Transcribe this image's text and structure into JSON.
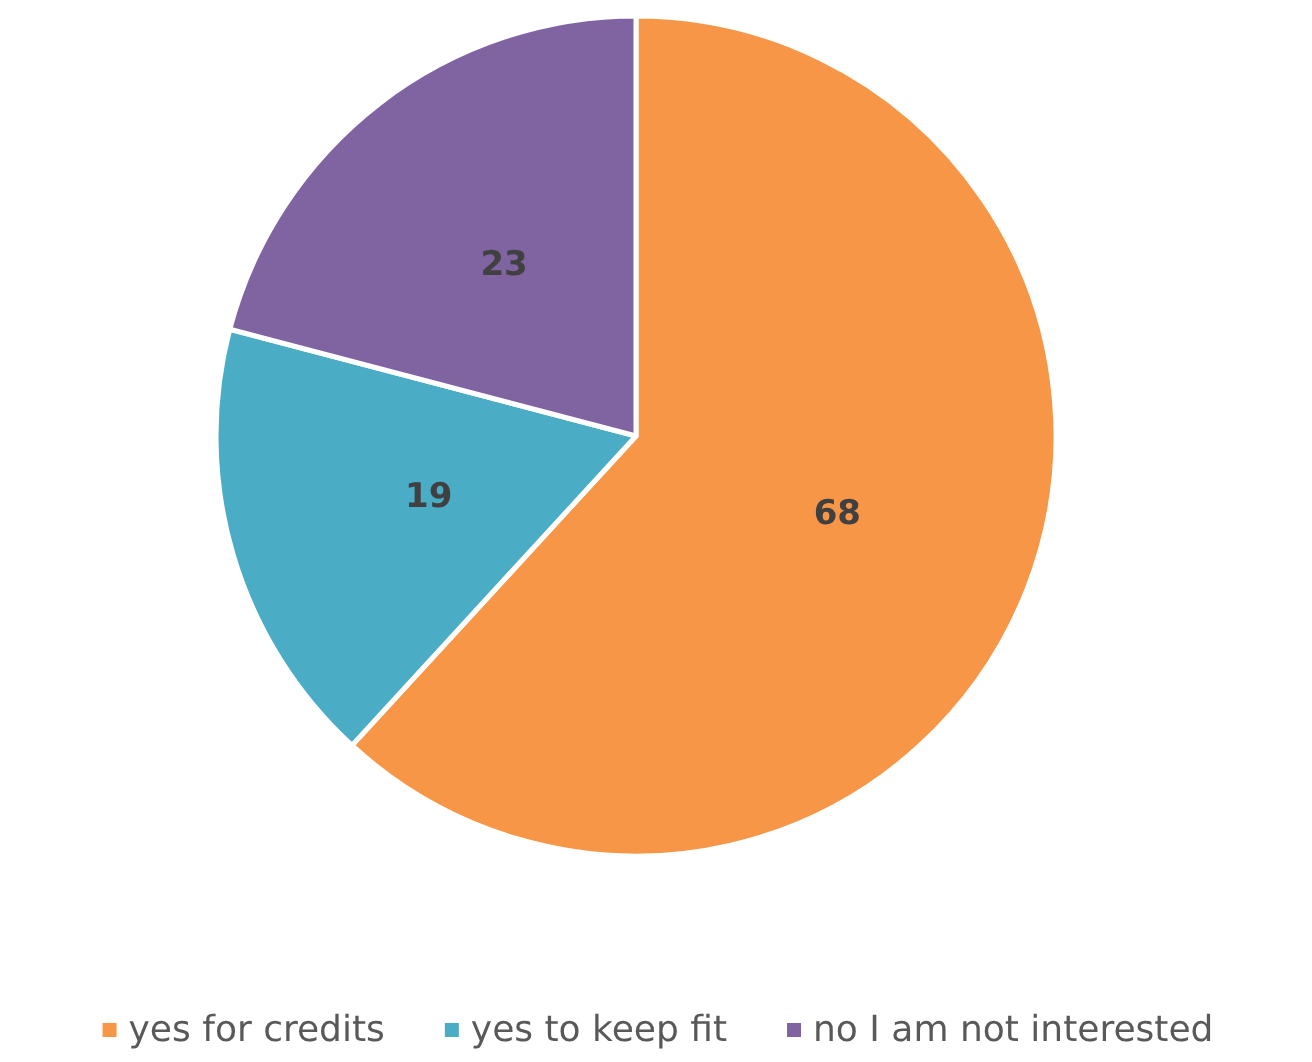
{
  "chart_data": {
    "type": "pie",
    "categories": [
      "yes for credits",
      "yes to keep fit",
      "no I am not interested"
    ],
    "values": [
      68,
      19,
      23
    ],
    "colors": [
      "#f79646",
      "#4bacc6",
      "#8064a2"
    ],
    "data_labels": true,
    "legend": "bottom"
  }
}
